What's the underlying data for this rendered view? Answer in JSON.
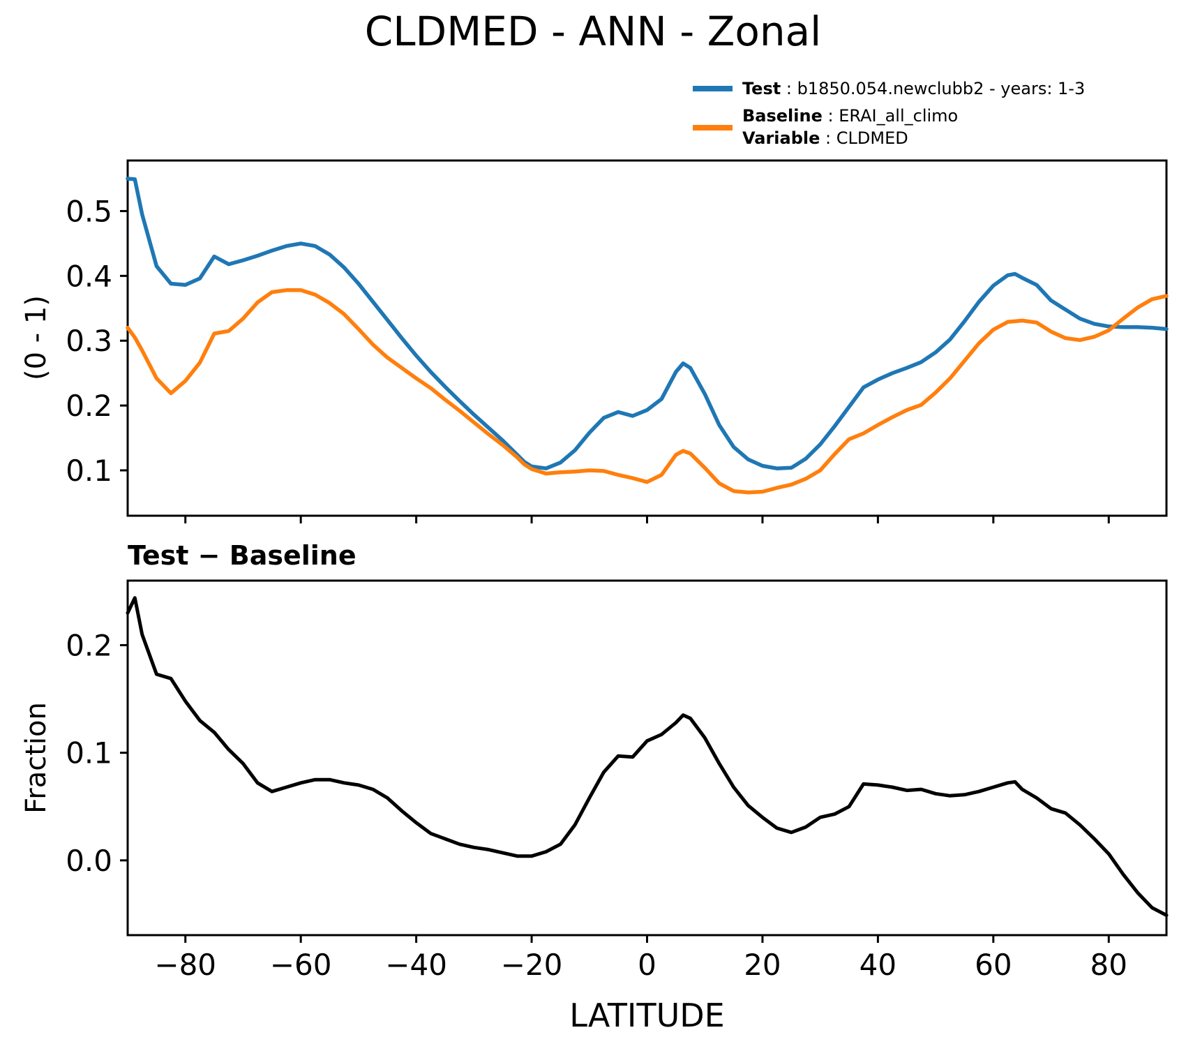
{
  "figure": {
    "title": "CLDMED - ANN - Zonal",
    "background_color": "#ffffff",
    "text_color": "#000000"
  },
  "legend": {
    "separator": " : ",
    "entries": [
      {
        "label": "Test",
        "value": "b1850.054.newclubb2 - years: 1-3",
        "color": "#1f77b4"
      },
      {
        "label": "Baseline",
        "value": "ERAI_all_climo",
        "color": "#ff7f0e"
      },
      {
        "label": "Variable",
        "value": "CLDMED",
        "color": null
      }
    ]
  },
  "chart_data": [
    {
      "type": "line",
      "title": "CLDMED - ANN - Zonal",
      "xlabel": "",
      "ylabel": "(0 - 1)",
      "xlim": [
        -90,
        90
      ],
      "ylim": [
        0.03,
        0.578
      ],
      "grid": false,
      "legend_position": "above axes, upper right",
      "show_xtick_labels": false,
      "xticks": [
        {
          "v": -80,
          "label": "−80"
        },
        {
          "v": -60,
          "label": "−60"
        },
        {
          "v": -40,
          "label": "−40"
        },
        {
          "v": -20,
          "label": "−20"
        },
        {
          "v": 0,
          "label": "0"
        },
        {
          "v": 20,
          "label": "20"
        },
        {
          "v": 40,
          "label": "40"
        },
        {
          "v": 60,
          "label": "60"
        },
        {
          "v": 80,
          "label": "80"
        }
      ],
      "yticks": [
        {
          "v": 0.1,
          "label": "0.1"
        },
        {
          "v": 0.2,
          "label": "0.2"
        },
        {
          "v": 0.3,
          "label": "0.3"
        },
        {
          "v": 0.4,
          "label": "0.4"
        },
        {
          "v": 0.5,
          "label": "0.5"
        }
      ],
      "x": [
        -90,
        -88.75,
        -87.5,
        -85,
        -82.5,
        -80,
        -77.5,
        -75,
        -72.5,
        -70,
        -67.5,
        -65,
        -62.5,
        -60,
        -57.5,
        -55,
        -52.5,
        -50,
        -47.5,
        -45,
        -42.5,
        -40,
        -37.5,
        -35,
        -32.5,
        -30,
        -27.5,
        -25,
        -22.5,
        -21.25,
        -20,
        -17.5,
        -15,
        -12.5,
        -10,
        -7.5,
        -5,
        -2.5,
        0,
        2.5,
        5,
        6.25,
        7.5,
        10,
        12.5,
        15,
        17.5,
        20,
        22.5,
        25,
        27.5,
        30,
        32.5,
        35,
        37.5,
        40,
        42.5,
        45,
        47.5,
        50,
        52.5,
        55,
        57.5,
        60,
        62.5,
        63.75,
        65,
        67.5,
        70,
        72.5,
        75,
        77.5,
        80,
        82.5,
        85,
        87.5,
        90
      ],
      "series": [
        {
          "name": "Test",
          "legend_label": "Test",
          "legend_value": "b1850.054.newclubb2 - years: 1-3",
          "color": "#1f77b4",
          "line_width": 5.5,
          "values": [
            0.55,
            0.549,
            0.495,
            0.415,
            0.388,
            0.386,
            0.396,
            0.43,
            0.418,
            0.424,
            0.431,
            0.439,
            0.446,
            0.45,
            0.446,
            0.433,
            0.413,
            0.388,
            0.36,
            0.332,
            0.304,
            0.277,
            0.252,
            0.229,
            0.207,
            0.186,
            0.166,
            0.146,
            0.124,
            0.113,
            0.106,
            0.103,
            0.112,
            0.131,
            0.158,
            0.181,
            0.19,
            0.184,
            0.193,
            0.21,
            0.252,
            0.265,
            0.258,
            0.218,
            0.17,
            0.136,
            0.117,
            0.107,
            0.103,
            0.104,
            0.118,
            0.14,
            0.168,
            0.198,
            0.228,
            0.24,
            0.25,
            0.258,
            0.267,
            0.282,
            0.302,
            0.33,
            0.36,
            0.385,
            0.401,
            0.403,
            0.397,
            0.386,
            0.362,
            0.348,
            0.334,
            0.326,
            0.322,
            0.321,
            0.321,
            0.32,
            0.318
          ]
        },
        {
          "name": "Baseline",
          "legend_label": "Baseline",
          "legend_value": "ERAI_all_climo",
          "color": "#ff7f0e",
          "line_width": 5.5,
          "values": [
            0.32,
            0.305,
            0.285,
            0.242,
            0.219,
            0.238,
            0.266,
            0.311,
            0.315,
            0.334,
            0.359,
            0.375,
            0.378,
            0.378,
            0.371,
            0.358,
            0.341,
            0.318,
            0.294,
            0.274,
            0.258,
            0.242,
            0.227,
            0.209,
            0.192,
            0.174,
            0.156,
            0.139,
            0.12,
            0.109,
            0.102,
            0.095,
            0.097,
            0.098,
            0.1,
            0.099,
            0.093,
            0.088,
            0.082,
            0.093,
            0.124,
            0.13,
            0.126,
            0.104,
            0.08,
            0.068,
            0.066,
            0.067,
            0.073,
            0.078,
            0.087,
            0.1,
            0.125,
            0.148,
            0.157,
            0.17,
            0.182,
            0.193,
            0.201,
            0.22,
            0.242,
            0.269,
            0.296,
            0.317,
            0.329,
            0.33,
            0.331,
            0.328,
            0.314,
            0.304,
            0.301,
            0.306,
            0.316,
            0.334,
            0.351,
            0.364,
            0.369
          ]
        }
      ]
    },
    {
      "type": "line",
      "title": "Test − Baseline",
      "xlabel": "LATITUDE",
      "ylabel": "Fraction",
      "xlim": [
        -90,
        90
      ],
      "ylim": [
        -0.0695,
        0.26
      ],
      "grid": false,
      "show_xtick_labels": true,
      "xticks": [
        {
          "v": -80,
          "label": "−80"
        },
        {
          "v": -60,
          "label": "−60"
        },
        {
          "v": -40,
          "label": "−40"
        },
        {
          "v": -20,
          "label": "−20"
        },
        {
          "v": 0,
          "label": "0"
        },
        {
          "v": 20,
          "label": "20"
        },
        {
          "v": 40,
          "label": "40"
        },
        {
          "v": 60,
          "label": "60"
        },
        {
          "v": 80,
          "label": "80"
        }
      ],
      "yticks": [
        {
          "v": 0.0,
          "label": "0.0"
        },
        {
          "v": 0.1,
          "label": "0.1"
        },
        {
          "v": 0.2,
          "label": "0.2"
        }
      ],
      "x": [
        -90,
        -88.75,
        -87.5,
        -85,
        -82.5,
        -80,
        -77.5,
        -75,
        -72.5,
        -70,
        -67.5,
        -65,
        -62.5,
        -60,
        -57.5,
        -55,
        -52.5,
        -50,
        -47.5,
        -45,
        -42.5,
        -40,
        -37.5,
        -35,
        -32.5,
        -30,
        -27.5,
        -25,
        -22.5,
        -21.25,
        -20,
        -17.5,
        -15,
        -12.5,
        -10,
        -7.5,
        -5,
        -2.5,
        0,
        2.5,
        5,
        6.25,
        7.5,
        10,
        12.5,
        15,
        17.5,
        20,
        22.5,
        25,
        27.5,
        30,
        32.5,
        35,
        37.5,
        40,
        42.5,
        45,
        47.5,
        50,
        52.5,
        55,
        57.5,
        60,
        62.5,
        63.75,
        65,
        67.5,
        70,
        72.5,
        75,
        77.5,
        80,
        82.5,
        85,
        87.5,
        90
      ],
      "series": [
        {
          "name": "Test − Baseline",
          "color": "#000000",
          "line_width": 5.0,
          "values": [
            0.23,
            0.244,
            0.21,
            0.173,
            0.169,
            0.148,
            0.13,
            0.119,
            0.103,
            0.09,
            0.072,
            0.064,
            0.068,
            0.072,
            0.075,
            0.075,
            0.072,
            0.07,
            0.066,
            0.058,
            0.046,
            0.035,
            0.025,
            0.02,
            0.015,
            0.012,
            0.01,
            0.007,
            0.004,
            0.004,
            0.004,
            0.008,
            0.015,
            0.033,
            0.058,
            0.082,
            0.097,
            0.096,
            0.111,
            0.117,
            0.128,
            0.135,
            0.132,
            0.114,
            0.09,
            0.068,
            0.051,
            0.04,
            0.03,
            0.026,
            0.031,
            0.04,
            0.043,
            0.05,
            0.071,
            0.07,
            0.068,
            0.065,
            0.066,
            0.062,
            0.06,
            0.061,
            0.064,
            0.068,
            0.072,
            0.073,
            0.066,
            0.058,
            0.048,
            0.044,
            0.033,
            0.02,
            0.006,
            -0.013,
            -0.03,
            -0.044,
            -0.051
          ]
        }
      ]
    }
  ]
}
